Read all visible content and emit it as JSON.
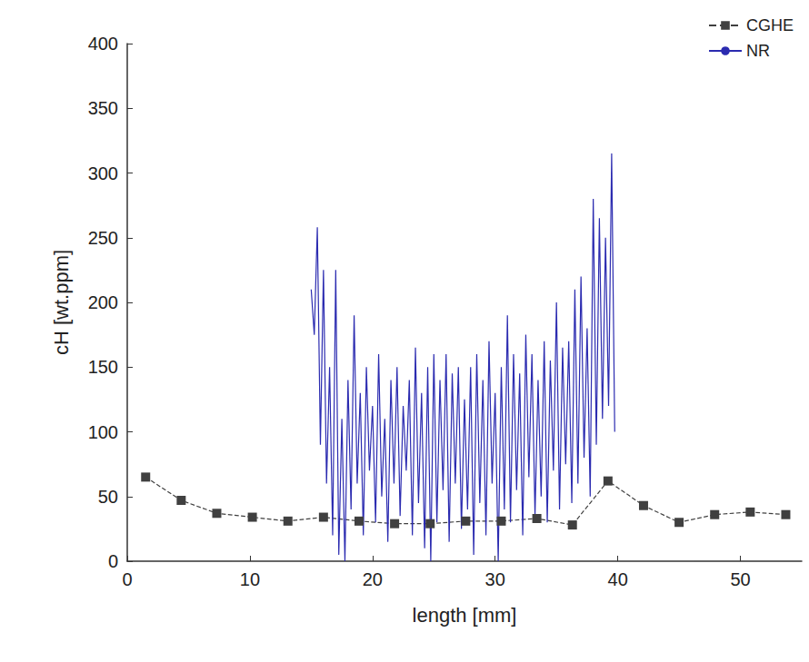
{
  "chart_data": {
    "type": "line",
    "x_label": "length [mm]",
    "y_label": "cH [wt.ppm]",
    "xlim": [
      0,
      55
    ],
    "xticks": [
      0,
      10,
      20,
      30,
      40,
      50
    ],
    "ylim": [
      0,
      400
    ],
    "yticks": [
      0,
      50,
      100,
      150,
      200,
      250,
      300,
      350,
      400
    ],
    "grid": false,
    "legend": "top-right",
    "series": [
      {
        "name": "CGHE",
        "color": "#404040",
        "marker": "square",
        "line_style": "dashed",
        "x": [
          1.5,
          4.4,
          7.3,
          10.2,
          13.1,
          16,
          18.9,
          21.8,
          24.7,
          27.6,
          30.5,
          33.4,
          36.3,
          39.2,
          42.1,
          45,
          47.9,
          50.8,
          53.7
        ],
        "values": [
          65,
          47,
          37,
          34,
          31,
          34,
          31,
          29,
          29,
          31,
          31,
          33,
          28,
          62,
          43,
          30,
          36,
          38,
          36
        ]
      },
      {
        "name": "NR",
        "color": "#2b2bb0",
        "marker": "none",
        "line_style": "solid",
        "x": [
          15,
          15.25,
          15.5,
          15.75,
          16,
          16.25,
          16.5,
          16.75,
          17,
          17.25,
          17.5,
          17.75,
          18,
          18.25,
          18.5,
          18.75,
          19,
          19.25,
          19.5,
          19.75,
          20,
          20.25,
          20.5,
          20.75,
          21,
          21.25,
          21.5,
          21.75,
          22,
          22.25,
          22.5,
          22.75,
          23,
          23.25,
          23.5,
          23.75,
          24,
          24.25,
          24.5,
          24.75,
          25,
          25.25,
          25.5,
          25.75,
          26,
          26.25,
          26.5,
          26.75,
          27,
          27.25,
          27.5,
          27.75,
          28,
          28.25,
          28.5,
          28.75,
          29,
          29.25,
          29.5,
          29.75,
          30,
          30.25,
          30.5,
          30.75,
          31,
          31.25,
          31.5,
          31.75,
          32,
          32.25,
          32.5,
          32.75,
          33,
          33.25,
          33.5,
          33.75,
          34,
          34.25,
          34.5,
          34.75,
          35,
          35.25,
          35.5,
          35.75,
          36,
          36.25,
          36.5,
          36.75,
          37,
          37.25,
          37.5,
          37.75,
          38,
          38.25,
          38.5,
          38.75,
          39,
          39.25,
          39.5,
          39.75
        ],
        "values": [
          210,
          175,
          258,
          90,
          225,
          60,
          150,
          20,
          225,
          5,
          110,
          0,
          140,
          40,
          190,
          60,
          130,
          20,
          150,
          70,
          120,
          30,
          160,
          50,
          110,
          15,
          140,
          60,
          150,
          35,
          120,
          70,
          140,
          20,
          165,
          45,
          130,
          10,
          150,
          0,
          160,
          30,
          140,
          55,
          160,
          15,
          145,
          60,
          150,
          25,
          125,
          40,
          150,
          5,
          160,
          45,
          140,
          20,
          170,
          60,
          130,
          0,
          150,
          40,
          190,
          30,
          160,
          55,
          145,
          20,
          175,
          65,
          160,
          35,
          140,
          50,
          170,
          30,
          155,
          70,
          200,
          40,
          165,
          75,
          170,
          45,
          210,
          60,
          220,
          80,
          180,
          50,
          280,
          90,
          265,
          110,
          250,
          120,
          315,
          100
        ]
      }
    ]
  }
}
